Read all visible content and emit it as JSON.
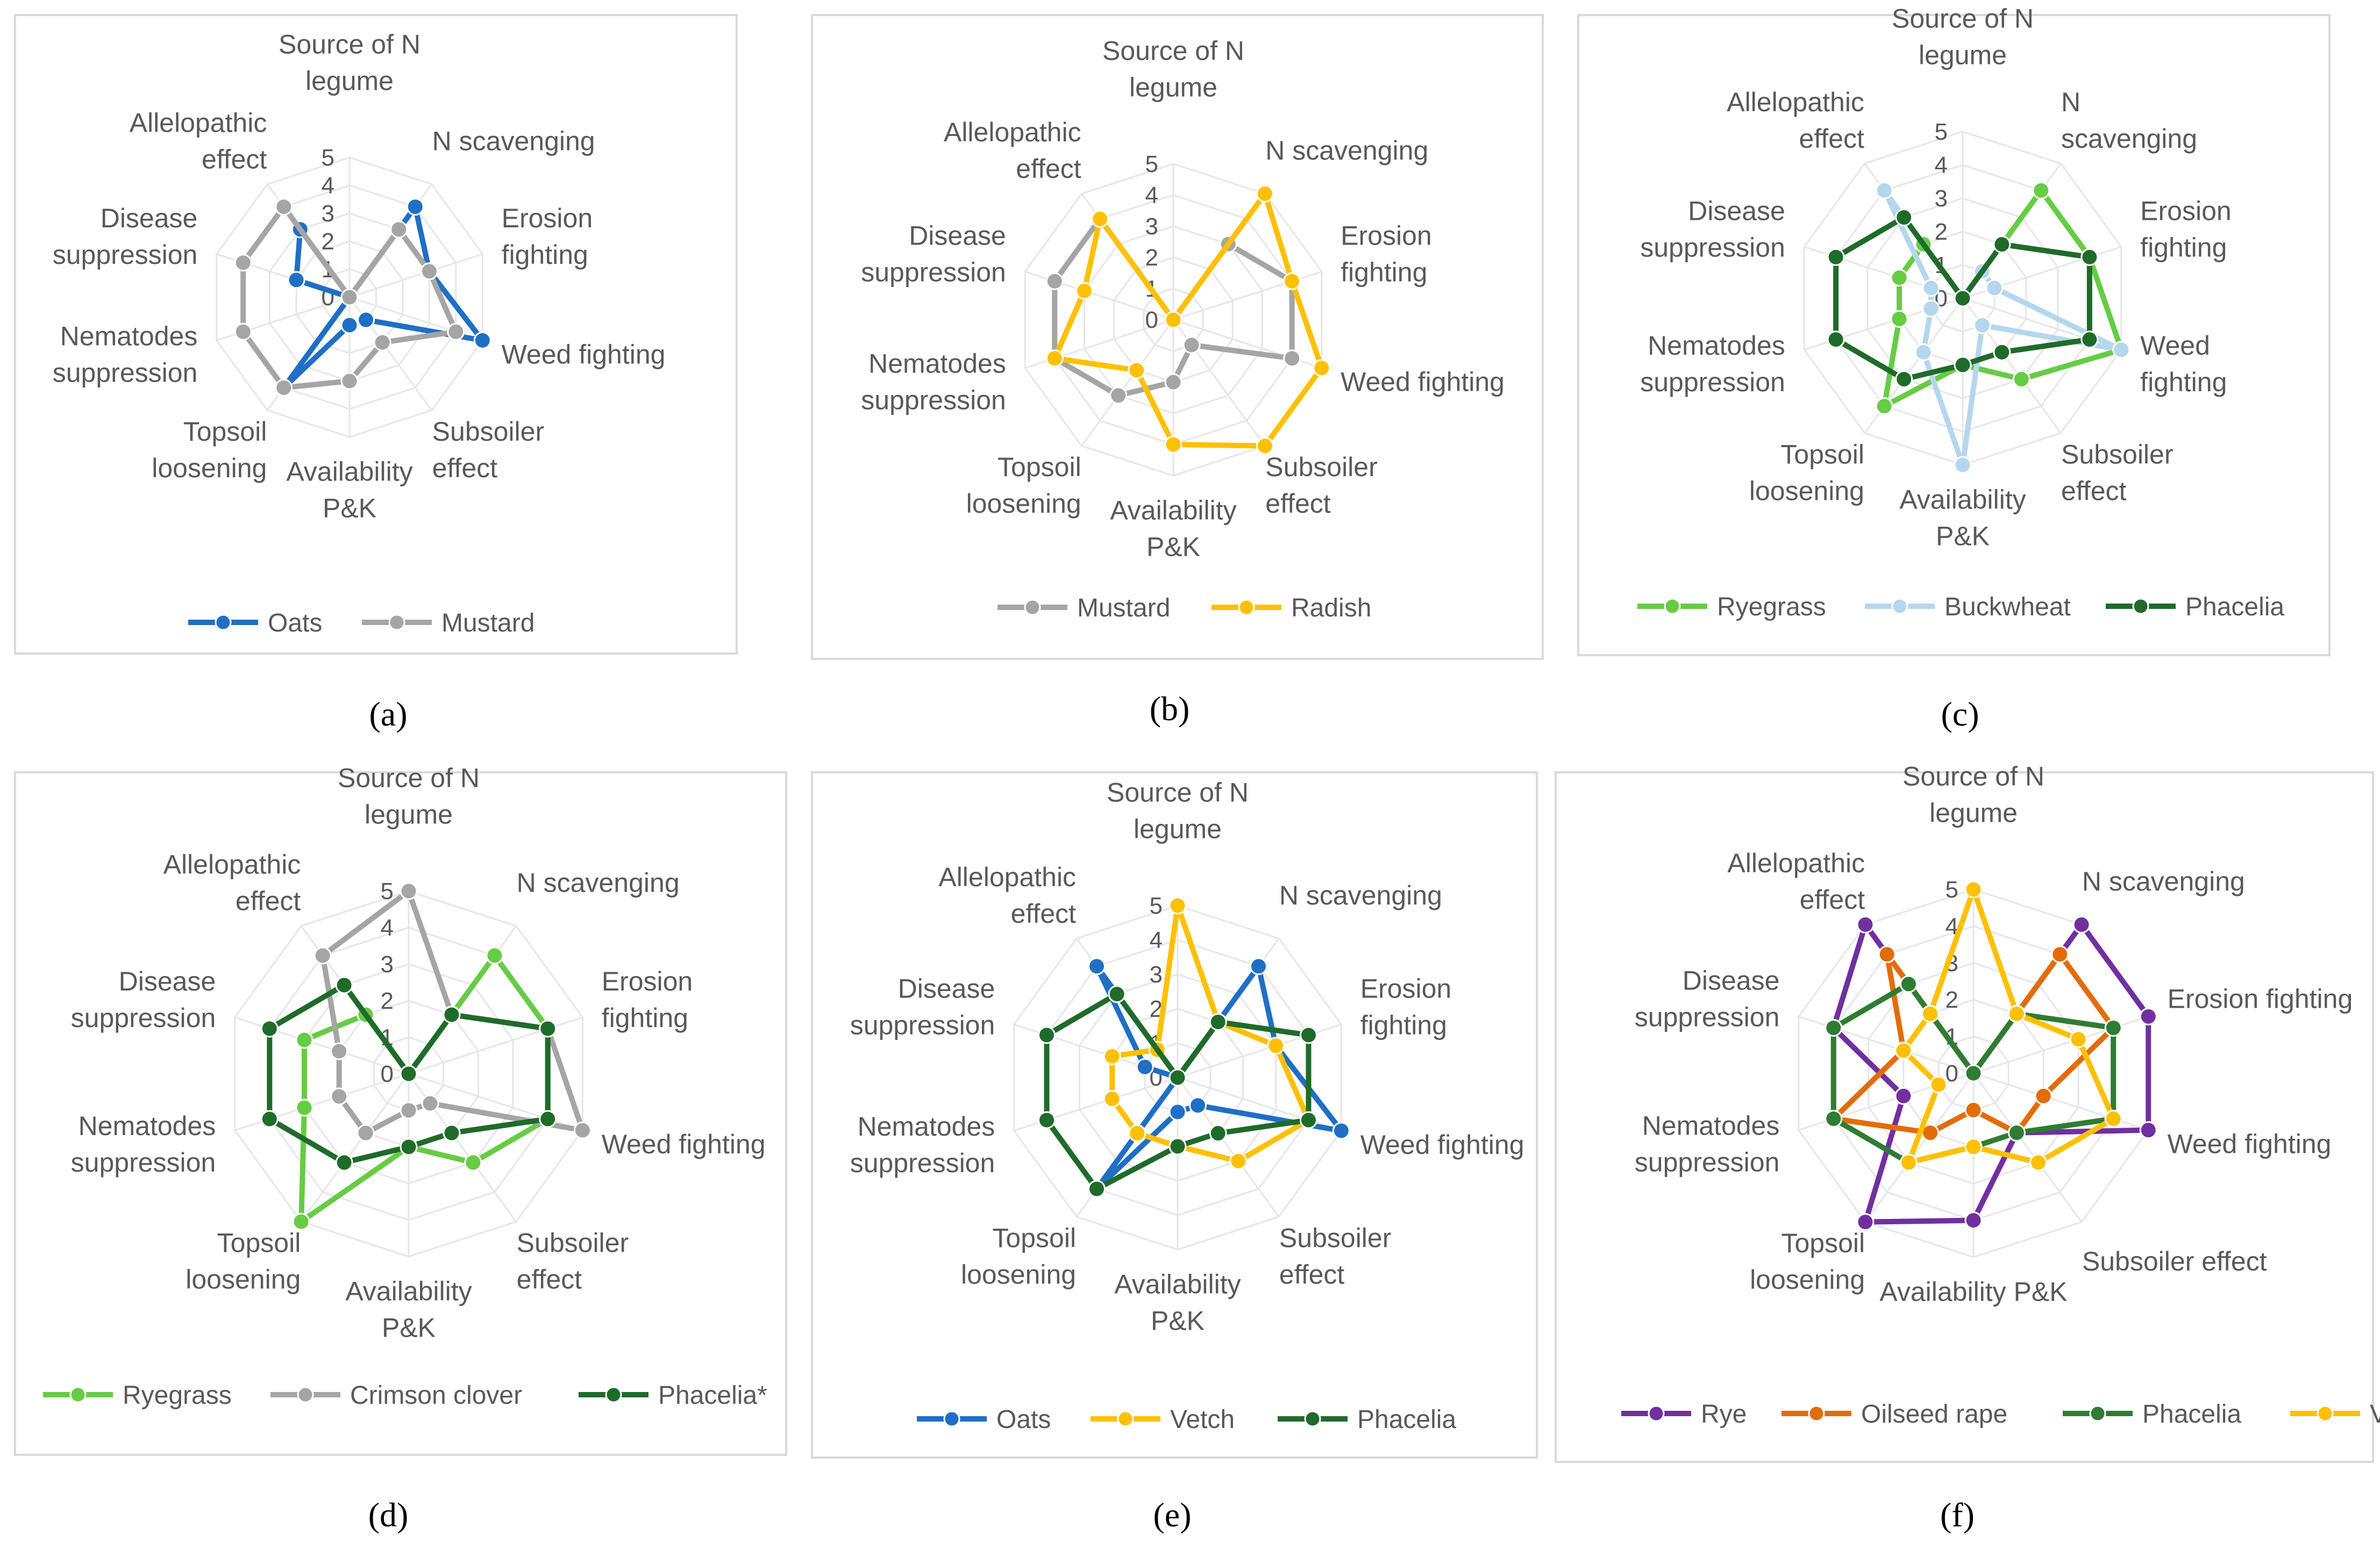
{
  "chart_data": [
    {
      "type": "radar",
      "panel": "a",
      "axes": [
        "Source of N legume",
        "N scavenging",
        "Erosion fighting",
        "Weed fighting",
        "Subsoiler effect",
        "Availability P&K",
        "Topsoil loosening",
        "Nematodes suppression",
        "Disease suppression",
        "Allelopathic effect"
      ],
      "axis_labels": [
        [
          "Source of N",
          "legume"
        ],
        [
          "N scavenging"
        ],
        [
          "Erosion",
          "fighting"
        ],
        [
          "Weed fighting"
        ],
        [
          "Subsoiler",
          "effect"
        ],
        [
          "Availability",
          "P&K"
        ],
        [
          "Topsoil",
          "loosening"
        ],
        [
          "Nematodes",
          "suppression"
        ],
        [
          "Disease",
          "suppression"
        ],
        [
          "Allelopathic",
          "effect"
        ]
      ],
      "ticks": [
        "0",
        "1",
        "2",
        "3",
        "4",
        "5"
      ],
      "rmax": 5,
      "series": [
        {
          "name": "Oats",
          "color": "#1f6fc5",
          "values": [
            0,
            4,
            3,
            5,
            1,
            1,
            4,
            0,
            2,
            3
          ]
        },
        {
          "name": "Mustard",
          "color": "#a5a5a5",
          "values": [
            0,
            3,
            3,
            4,
            2,
            3,
            4,
            4,
            4,
            4
          ]
        }
      ]
    },
    {
      "type": "radar",
      "panel": "b",
      "axes": [
        "Source of N legume",
        "N scavenging",
        "Erosion fighting",
        "Weed fighting",
        "Subsoiler effect",
        "Availability P&K",
        "Topsoil loosening",
        "Nematodes suppression",
        "Disease suppression",
        "Allelopathic effect"
      ],
      "axis_labels": [
        [
          "Source of N",
          "legume"
        ],
        [
          "N scavenging"
        ],
        [
          "Erosion",
          "fighting"
        ],
        [
          "Weed fighting"
        ],
        [
          "Subsoiler",
          "effect"
        ],
        [
          "Availability",
          "P&K"
        ],
        [
          "Topsoil",
          "loosening"
        ],
        [
          "Nematodes",
          "suppression"
        ],
        [
          "Disease",
          "suppression"
        ],
        [
          "Allelopathic",
          "effect"
        ]
      ],
      "ticks": [
        "0",
        "1",
        "2",
        "3",
        "4",
        "5"
      ],
      "rmax": 5,
      "series": [
        {
          "name": "Mustard",
          "color": "#a5a5a5",
          "values": [
            0,
            3,
            4,
            4,
            1,
            2,
            3,
            4,
            4,
            4
          ]
        },
        {
          "name": "Radish",
          "color": "#ffc000",
          "values": [
            0,
            5,
            4,
            5,
            5,
            4,
            2,
            4,
            3,
            4
          ]
        }
      ]
    },
    {
      "type": "radar",
      "panel": "c",
      "axes": [
        "Source of N legume",
        "N scavenging",
        "Erosion fighting",
        "Weed fighting",
        "Subsoiler effect",
        "Availability P&K",
        "Topsoil loosening",
        "Nematodes suppression",
        "Disease suppression",
        "Allelopathic effect"
      ],
      "axis_labels": [
        [
          "Source of N",
          "legume"
        ],
        [
          "N",
          "scavenging"
        ],
        [
          "Erosion",
          "fighting"
        ],
        [
          "Weed",
          "fighting"
        ],
        [
          "Subsoiler",
          "effect"
        ],
        [
          "Availability",
          "P&K"
        ],
        [
          "Topsoil",
          "loosening"
        ],
        [
          "Nematodes",
          "suppression"
        ],
        [
          "Disease",
          "suppression"
        ],
        [
          "Allelopathic",
          "effect"
        ]
      ],
      "ticks": [
        "0",
        "1",
        "2",
        "3",
        "4",
        "5"
      ],
      "rmax": 5,
      "series": [
        {
          "name": "Ryegrass",
          "color": "#66cc44",
          "values": [
            0,
            4,
            4,
            5,
            3,
            2,
            4,
            2,
            2,
            2
          ]
        },
        {
          "name": "Buckwheat",
          "color": "#b4d7ee",
          "values": [
            0,
            1,
            1,
            5,
            1,
            5,
            2,
            1,
            1,
            4
          ]
        },
        {
          "name": "Phacelia",
          "color": "#1f6b2a",
          "values": [
            0,
            2,
            4,
            4,
            2,
            2,
            3,
            4,
            4,
            3
          ]
        }
      ]
    },
    {
      "type": "radar",
      "panel": "d",
      "axes": [
        "Source of N legume",
        "N scavenging",
        "Erosion fighting",
        "Weed fighting",
        "Subsoiler effect",
        "Availability P&K",
        "Topsoil loosening",
        "Nematodes suppression",
        "Disease suppression",
        "Allelopathic effect"
      ],
      "axis_labels": [
        [
          "Source of N",
          "legume"
        ],
        [
          "N scavenging"
        ],
        [
          "Erosion",
          "fighting"
        ],
        [
          "Weed fighting"
        ],
        [
          "Subsoiler",
          "effect"
        ],
        [
          "Availability",
          "P&K"
        ],
        [
          "Topsoil",
          "loosening"
        ],
        [
          "Nematodes",
          "suppression"
        ],
        [
          "Disease",
          "suppression"
        ],
        [
          "Allelopathic",
          "effect"
        ]
      ],
      "ticks": [
        "0",
        "1",
        "2",
        "3",
        "4",
        "5"
      ],
      "rmax": 5,
      "series": [
        {
          "name": "Ryegrass",
          "color": "#66cc44",
          "values": [
            0,
            4,
            4,
            4,
            3,
            2,
            5,
            3,
            3,
            2
          ]
        },
        {
          "name": "Crimson clover",
          "color": "#a5a5a5",
          "values": [
            5,
            2,
            4,
            5,
            1,
            1,
            2,
            2,
            2,
            4
          ]
        },
        {
          "name": "Phacelia*",
          "color": "#1f6b2a",
          "values": [
            0,
            2,
            4,
            4,
            2,
            2,
            3,
            4,
            4,
            3
          ]
        }
      ]
    },
    {
      "type": "radar",
      "panel": "e",
      "axes": [
        "Source of N legume",
        "N scavenging",
        "Erosion fighting",
        "Weed fighting",
        "Subsoiler effect",
        "Availability P&K",
        "Topsoil loosening",
        "Nematodes suppression",
        "Disease suppression",
        "Allelopathic effect"
      ],
      "axis_labels": [
        [
          "Source of N",
          "legume"
        ],
        [
          "N scavenging"
        ],
        [
          "Erosion",
          "fighting"
        ],
        [
          "Weed fighting"
        ],
        [
          "Subsoiler",
          "effect"
        ],
        [
          "Availability",
          "P&K"
        ],
        [
          "Topsoil",
          "loosening"
        ],
        [
          "Nematodes",
          "suppression"
        ],
        [
          "Disease",
          "suppression"
        ],
        [
          "Allelopathic",
          "effect"
        ]
      ],
      "ticks": [
        "0",
        "1",
        "2",
        "3",
        "4",
        "5"
      ],
      "rmax": 5,
      "series": [
        {
          "name": "Oats",
          "color": "#1f6fc5",
          "values": [
            0,
            4,
            3,
            5,
            1,
            1,
            4,
            0,
            1,
            4
          ]
        },
        {
          "name": "Vetch",
          "color": "#ffc000",
          "values": [
            5,
            2,
            3,
            4,
            3,
            2,
            2,
            2,
            2,
            1
          ]
        },
        {
          "name": "Phacelia",
          "color": "#1f6b2a",
          "values": [
            0,
            2,
            4,
            4,
            2,
            2,
            4,
            4,
            4,
            3
          ]
        }
      ]
    },
    {
      "type": "radar",
      "panel": "f",
      "axes": [
        "Source of N legume",
        "N scavenging",
        "Erosion fighting",
        "Weed fighting",
        "Subsoiler effect",
        "Availability P&K",
        "Topsoil loosening",
        "Nematodes suppression",
        "Disease suppression",
        "Allelopathic effect"
      ],
      "axis_labels": [
        [
          "Source of N",
          "legume"
        ],
        [
          "N scavenging"
        ],
        [
          "Erosion fighting"
        ],
        [
          "Weed fighting"
        ],
        [
          "Subsoiler effect"
        ],
        [
          "Availability P&K"
        ],
        [
          "Topsoil",
          "loosening"
        ],
        [
          "Nematodes",
          "suppression"
        ],
        [
          "Disease",
          "suppression"
        ],
        [
          "Allelopathic",
          "effect"
        ]
      ],
      "ticks": [
        "0",
        "1",
        "2",
        "3",
        "4",
        "5"
      ],
      "rmax": 5,
      "series": [
        {
          "name": "Rye",
          "color": "#7030a0",
          "values": [
            0,
            5,
            5,
            5,
            2,
            4,
            5,
            2,
            4,
            5
          ]
        },
        {
          "name": "Oilseed rape",
          "color": "#e36c09",
          "values": [
            0,
            4,
            4,
            2,
            2,
            1,
            2,
            4,
            2,
            4
          ]
        },
        {
          "name": "Phacelia",
          "color": "#2e7d32",
          "values": [
            0,
            2,
            4,
            4,
            2,
            2,
            3,
            4,
            4,
            3
          ]
        },
        {
          "name": "Vetch",
          "color": "#ffc000",
          "values": [
            5,
            2,
            3,
            4,
            3,
            2,
            3,
            1,
            2,
            2
          ]
        }
      ]
    }
  ],
  "captions": [
    "(a)",
    "(b)",
    "(c)",
    "(d)",
    "(e)",
    "(f)"
  ]
}
